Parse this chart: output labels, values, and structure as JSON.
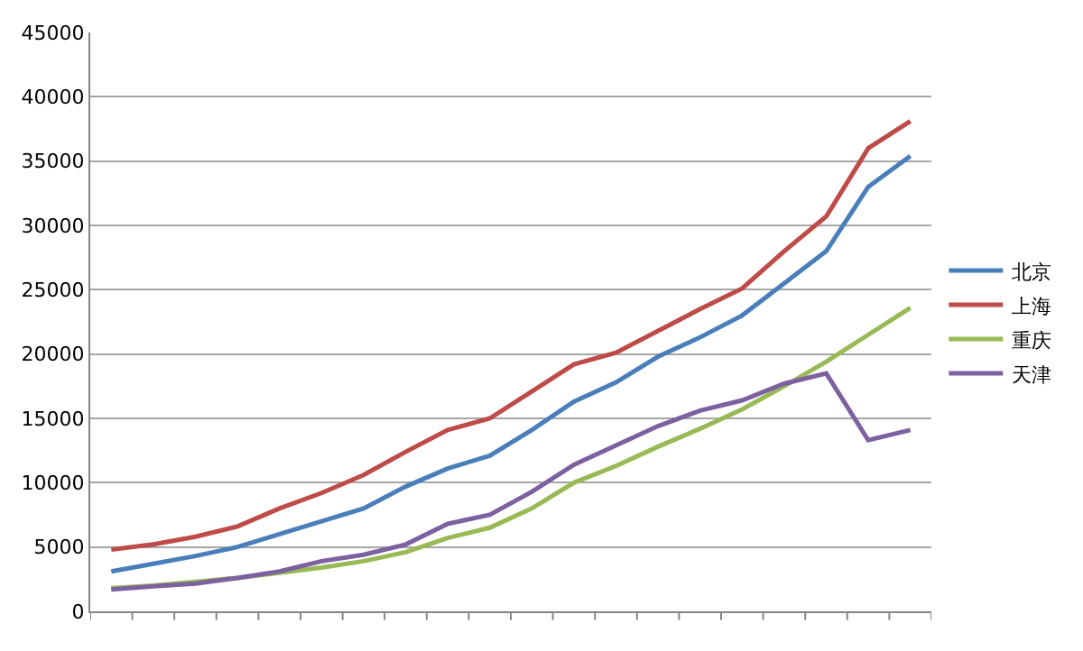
{
  "chart_data": {
    "type": "line",
    "categories": [
      null,
      null,
      null,
      null,
      null,
      null,
      null,
      null,
      null,
      null,
      null,
      null,
      null,
      null,
      null,
      null,
      null,
      null,
      null,
      null
    ],
    "series": [
      {
        "name": "北京",
        "color": "#4a7ebb",
        "values": [
          3100,
          3700,
          4300,
          5000,
          6000,
          7000,
          8000,
          9700,
          11100,
          12100,
          14100,
          16300,
          17800,
          19800,
          21300,
          23000,
          25500,
          28000,
          33000,
          35400
        ]
      },
      {
        "name": "上海",
        "color": "#be4b48",
        "values": [
          4800,
          5200,
          5800,
          6600,
          8000,
          9200,
          10600,
          12400,
          14100,
          15000,
          17100,
          19200,
          20100,
          21800,
          23500,
          25100,
          28000,
          30700,
          36000,
          38100
        ]
      },
      {
        "name": "重庆",
        "color": "#98b954",
        "values": [
          1800,
          2000,
          2300,
          2600,
          3000,
          3400,
          3900,
          4600,
          5700,
          6500,
          8000,
          10000,
          11300,
          12800,
          14200,
          15700,
          17500,
          19400,
          21500,
          23600
        ]
      },
      {
        "name": "天津",
        "color": "#7d60a0",
        "values": [
          1700,
          1950,
          2150,
          2600,
          3100,
          3900,
          4400,
          5200,
          6800,
          7500,
          9300,
          11400,
          12900,
          14400,
          15600,
          16400,
          17700,
          18500,
          13300,
          14100
        ]
      }
    ],
    "ylim": [
      0,
      45000
    ],
    "yticks": [
      0,
      5000,
      10000,
      15000,
      20000,
      25000,
      30000,
      35000,
      40000,
      45000
    ],
    "grid": "y",
    "legend": "right",
    "marker": "none",
    "line_style": "solid",
    "tick_labels": "y"
  }
}
